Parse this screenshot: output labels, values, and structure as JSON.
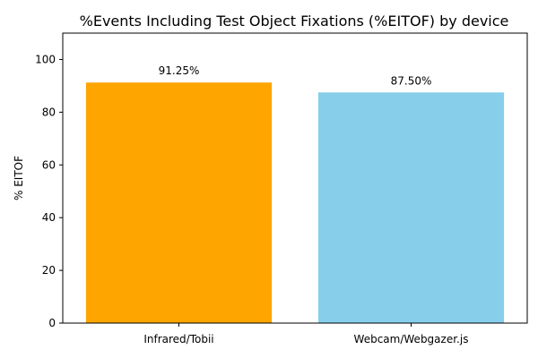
{
  "chart_data": {
    "type": "bar",
    "title": "%Events Including Test Object Fixations (%EITOF) by device",
    "xlabel": "",
    "ylabel": "% EITOF",
    "ylim": [
      0,
      110
    ],
    "yticks": [
      0,
      20,
      40,
      60,
      80,
      100
    ],
    "categories": [
      "Infrared/Tobii",
      "Webcam/Webgazer.js"
    ],
    "values": [
      91.25,
      87.5
    ],
    "data_labels": [
      "91.25%",
      "87.50%"
    ],
    "colors": [
      "#ffa500",
      "#87ceeb"
    ],
    "grid": false,
    "legend": "none"
  }
}
